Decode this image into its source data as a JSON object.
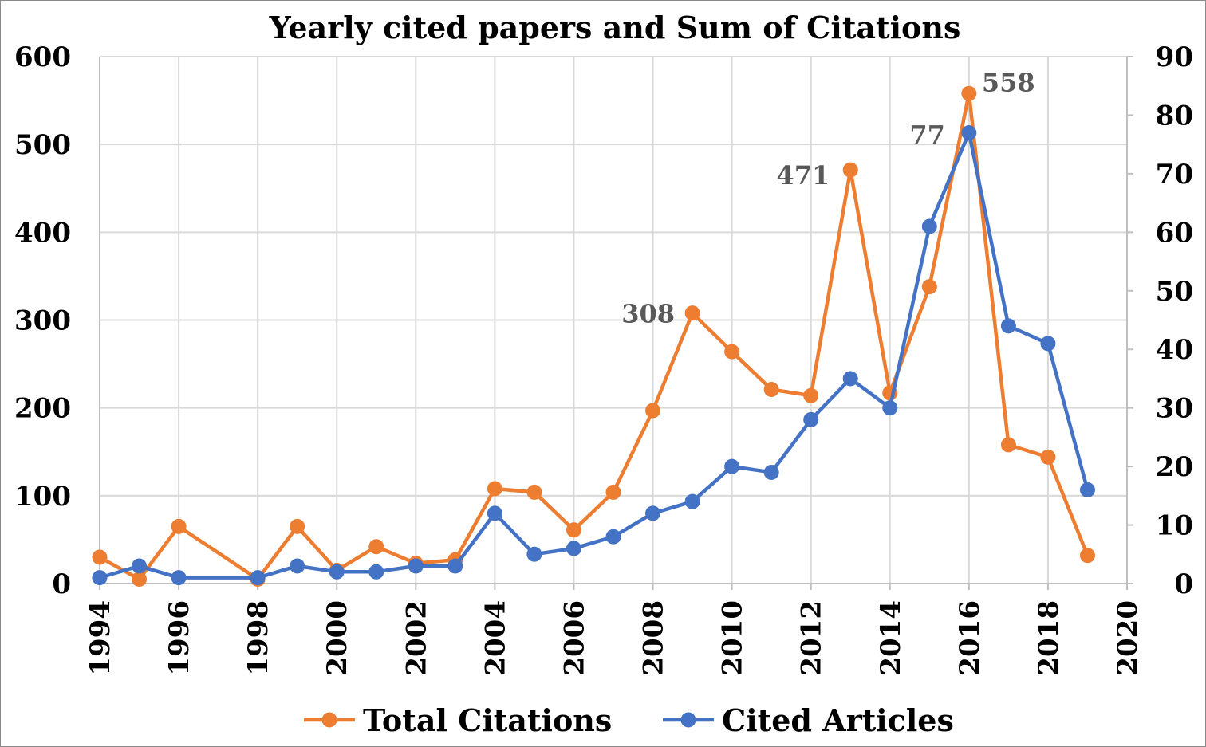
{
  "chart_data": {
    "type": "line",
    "title": "Yearly cited papers and Sum of Citations",
    "x_axis": {
      "range": [
        1994,
        2020
      ],
      "tick_labels": [
        "1994",
        "1996",
        "1998",
        "2000",
        "2002",
        "2004",
        "2006",
        "2008",
        "2010",
        "2012",
        "2014",
        "2016",
        "2018",
        "2020"
      ]
    },
    "y_left": {
      "range": [
        0,
        600
      ],
      "tick_labels": [
        "0",
        "100",
        "200",
        "300",
        "400",
        "500",
        "600"
      ]
    },
    "y_right": {
      "range": [
        0,
        90
      ],
      "tick_labels": [
        "0",
        "10",
        "20",
        "30",
        "40",
        "50",
        "60",
        "70",
        "80",
        "90"
      ]
    },
    "grid": true,
    "legend_position": "bottom",
    "series": [
      {
        "name": "Total Citations",
        "axis": "left",
        "color": "#ED7D31",
        "x": [
          1994,
          1995,
          1996,
          1998,
          1999,
          2000,
          2001,
          2002,
          2003,
          2004,
          2005,
          2006,
          2007,
          2008,
          2009,
          2010,
          2011,
          2012,
          2013,
          2014,
          2015,
          2016,
          2017,
          2018,
          2019
        ],
        "values": [
          30,
          5,
          65,
          5,
          65,
          15,
          42,
          23,
          27,
          108,
          104,
          61,
          104,
          197,
          308,
          264,
          221,
          214,
          471,
          217,
          338,
          558,
          158,
          144,
          32
        ]
      },
      {
        "name": "Cited Articles",
        "axis": "right",
        "color": "#4472C4",
        "x": [
          1994,
          1995,
          1996,
          1998,
          1999,
          2000,
          2001,
          2002,
          2003,
          2004,
          2005,
          2006,
          2007,
          2008,
          2009,
          2010,
          2011,
          2012,
          2013,
          2014,
          2015,
          2016,
          2017,
          2018,
          2019
        ],
        "values": [
          1,
          3,
          1,
          1,
          3,
          2,
          2,
          3,
          3,
          12,
          5,
          6,
          8,
          12,
          14,
          20,
          19,
          28,
          35,
          30,
          61,
          77,
          44,
          41,
          16
        ]
      }
    ],
    "annotations": [
      {
        "series": "Total Citations",
        "x": 2009,
        "text": "308"
      },
      {
        "series": "Total Citations",
        "x": 2013,
        "text": "471"
      },
      {
        "series": "Total Citations",
        "x": 2016,
        "text": "558"
      },
      {
        "series": "Cited Articles",
        "x": 2016,
        "text": "77"
      }
    ]
  }
}
